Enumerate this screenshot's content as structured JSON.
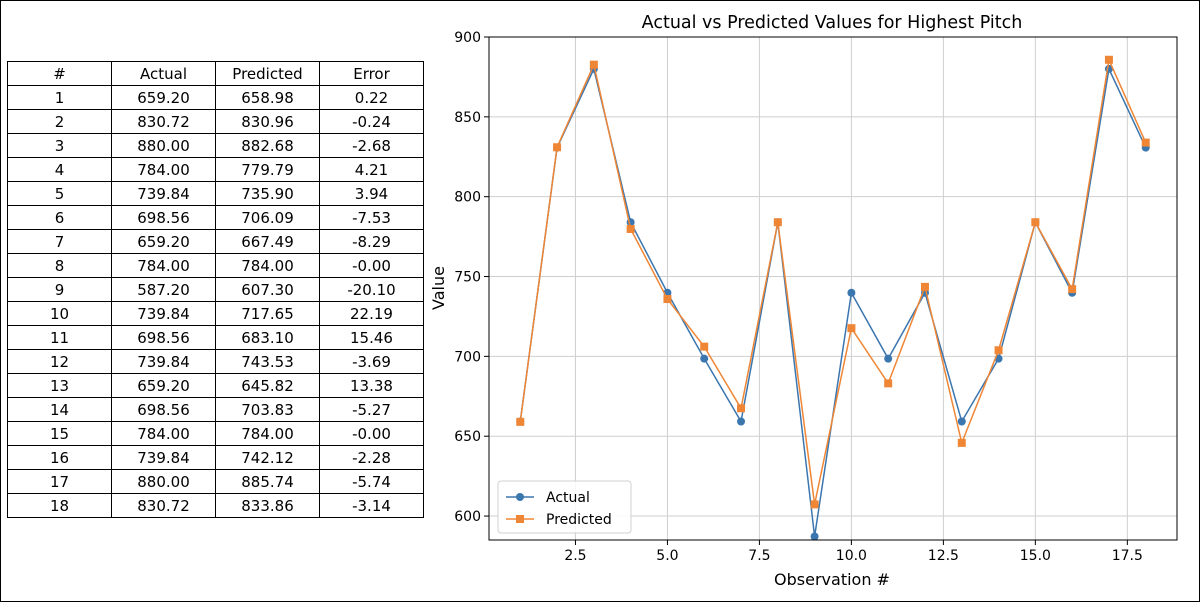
{
  "table": {
    "headers": [
      "#",
      "Actual",
      "Predicted",
      "Error"
    ],
    "rows": [
      [
        "1",
        "659.20",
        "658.98",
        "0.22"
      ],
      [
        "2",
        "830.72",
        "830.96",
        "-0.24"
      ],
      [
        "3",
        "880.00",
        "882.68",
        "-2.68"
      ],
      [
        "4",
        "784.00",
        "779.79",
        "4.21"
      ],
      [
        "5",
        "739.84",
        "735.90",
        "3.94"
      ],
      [
        "6",
        "698.56",
        "706.09",
        "-7.53"
      ],
      [
        "7",
        "659.20",
        "667.49",
        "-8.29"
      ],
      [
        "8",
        "784.00",
        "784.00",
        "-0.00"
      ],
      [
        "9",
        "587.20",
        "607.30",
        "-20.10"
      ],
      [
        "10",
        "739.84",
        "717.65",
        "22.19"
      ],
      [
        "11",
        "698.56",
        "683.10",
        "15.46"
      ],
      [
        "12",
        "739.84",
        "743.53",
        "-3.69"
      ],
      [
        "13",
        "659.20",
        "645.82",
        "13.38"
      ],
      [
        "14",
        "698.56",
        "703.83",
        "-5.27"
      ],
      [
        "15",
        "784.00",
        "784.00",
        "-0.00"
      ],
      [
        "16",
        "739.84",
        "742.12",
        "-2.28"
      ],
      [
        "17",
        "880.00",
        "885.74",
        "-5.74"
      ],
      [
        "18",
        "830.72",
        "833.86",
        "-3.14"
      ]
    ]
  },
  "chart_data": {
    "type": "line",
    "title": "Actual vs Predicted Values for Highest Pitch",
    "xlabel": "Observation #",
    "ylabel": "Value",
    "x": [
      1,
      2,
      3,
      4,
      5,
      6,
      7,
      8,
      9,
      10,
      11,
      12,
      13,
      14,
      15,
      16,
      17,
      18
    ],
    "xlim": [
      0.15,
      18.85
    ],
    "ylim": [
      585,
      900
    ],
    "xticks": [
      2.5,
      5.0,
      7.5,
      10.0,
      12.5,
      15.0,
      17.5
    ],
    "xtick_labels": [
      "2.5",
      "5.0",
      "7.5",
      "10.0",
      "12.5",
      "15.0",
      "17.5"
    ],
    "yticks": [
      600,
      650,
      700,
      750,
      800,
      850,
      900
    ],
    "ytick_labels": [
      "600",
      "650",
      "700",
      "750",
      "800",
      "850",
      "900"
    ],
    "grid": true,
    "legend_position": "lower-left",
    "series": [
      {
        "name": "Actual",
        "marker": "circle",
        "color": "#3b76af",
        "values": [
          659.2,
          830.72,
          880.0,
          784.0,
          739.84,
          698.56,
          659.2,
          784.0,
          587.2,
          739.84,
          698.56,
          739.84,
          659.2,
          698.56,
          784.0,
          739.84,
          880.0,
          830.72
        ]
      },
      {
        "name": "Predicted",
        "marker": "square",
        "color": "#ef8636",
        "values": [
          658.98,
          830.96,
          882.68,
          779.79,
          735.9,
          706.09,
          667.49,
          784.0,
          607.3,
          717.65,
          683.1,
          743.53,
          645.82,
          703.83,
          784.0,
          742.12,
          885.74,
          833.86
        ]
      }
    ]
  }
}
